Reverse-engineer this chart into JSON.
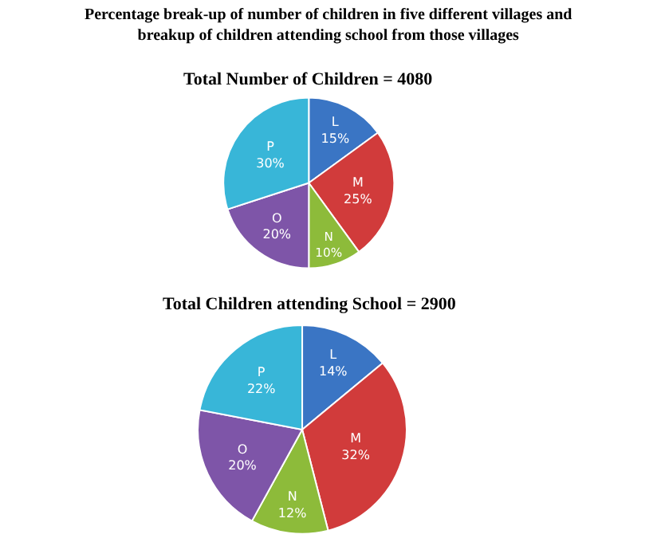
{
  "chart_data": [
    {
      "type": "pie",
      "title": "Percentage break-up of number of children in five different villages and breakup of children attending school from those villages",
      "subtitle": "Total Number of Children = 4080",
      "categories": [
        "L",
        "M",
        "N",
        "O",
        "P"
      ],
      "values": [
        15,
        25,
        10,
        20,
        30
      ],
      "value_labels": [
        "15%",
        "25%",
        "10%",
        "20%",
        "30%"
      ],
      "colors": [
        "#3a75c4",
        "#d13b3b",
        "#8dbb3a",
        "#7e55a8",
        "#38b6d8"
      ],
      "legend": false
    },
    {
      "type": "pie",
      "title": "Total Children attending School = 2900",
      "categories": [
        "L",
        "M",
        "N",
        "O",
        "P"
      ],
      "values": [
        14,
        32,
        12,
        20,
        22
      ],
      "value_labels": [
        "14%",
        "32%",
        "12%",
        "20%",
        "22%"
      ],
      "colors": [
        "#3a75c4",
        "#d13b3b",
        "#8dbb3a",
        "#7e55a8",
        "#38b6d8"
      ],
      "legend": false
    }
  ]
}
